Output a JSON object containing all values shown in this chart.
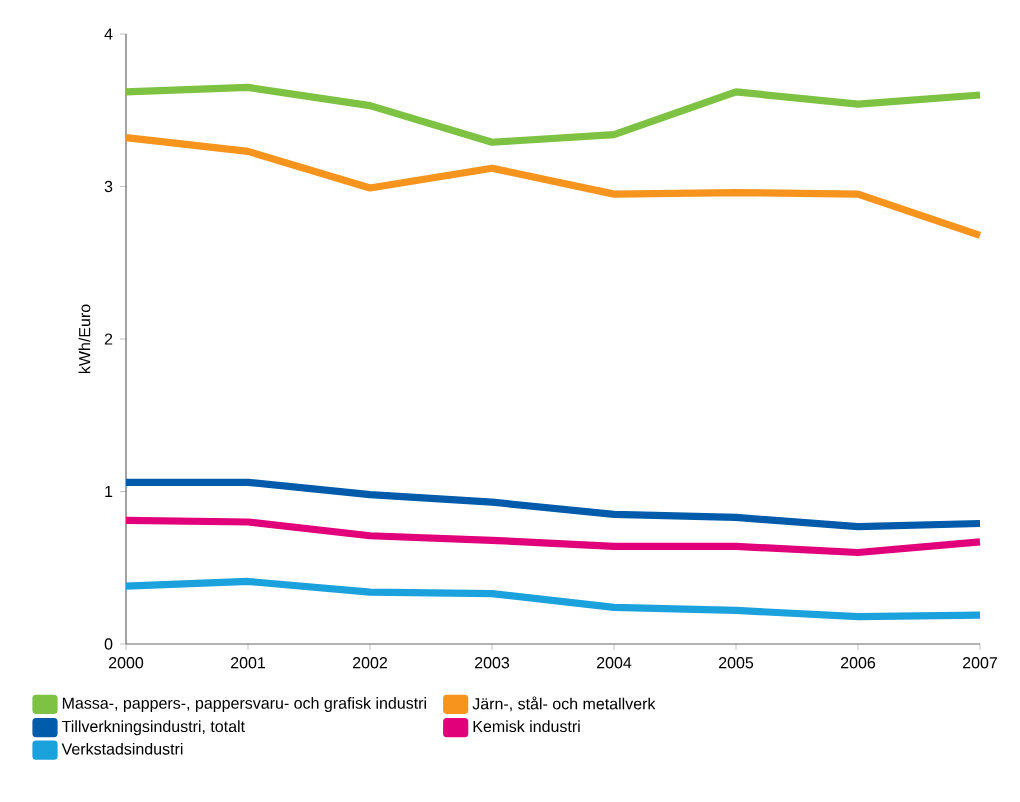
{
  "chart_data": {
    "type": "line",
    "ylabel": "kWh/Euro",
    "x": [
      2000,
      2001,
      2002,
      2003,
      2004,
      2005,
      2006,
      2007
    ],
    "xlim": [
      2000,
      2007
    ],
    "xticks": [
      2000,
      2001,
      2002,
      2003,
      2004,
      2005,
      2006,
      2007
    ],
    "ylim": [
      0,
      4
    ],
    "yticks": [
      0,
      1,
      2,
      3,
      4
    ],
    "legend": "bottom",
    "grid": false,
    "marker": "none",
    "line_style": "solid",
    "series": [
      {
        "name": "Massa-, pappers-, pappersvaru- och grafisk industri",
        "color": "#7dc242",
        "values": [
          3.62,
          3.65,
          3.53,
          3.29,
          3.34,
          3.62,
          3.54,
          3.6
        ]
      },
      {
        "name": "Järn-, stål- och metallverk",
        "color": "#f7941d",
        "values": [
          3.32,
          3.23,
          2.99,
          3.12,
          2.95,
          2.96,
          2.95,
          2.68
        ]
      },
      {
        "name": "Tillverkningsindustri, totalt",
        "color": "#005baa",
        "values": [
          1.06,
          1.06,
          0.98,
          0.93,
          0.85,
          0.83,
          0.77,
          0.79
        ]
      },
      {
        "name": "Kemisk industri",
        "color": "#e2007a",
        "values": [
          0.81,
          0.8,
          0.71,
          0.68,
          0.64,
          0.64,
          0.6,
          0.67
        ]
      },
      {
        "name": "Verkstadsindustri",
        "color": "#1ba1dc",
        "values": [
          0.38,
          0.41,
          0.34,
          0.33,
          0.24,
          0.22,
          0.18,
          0.19
        ]
      }
    ]
  }
}
